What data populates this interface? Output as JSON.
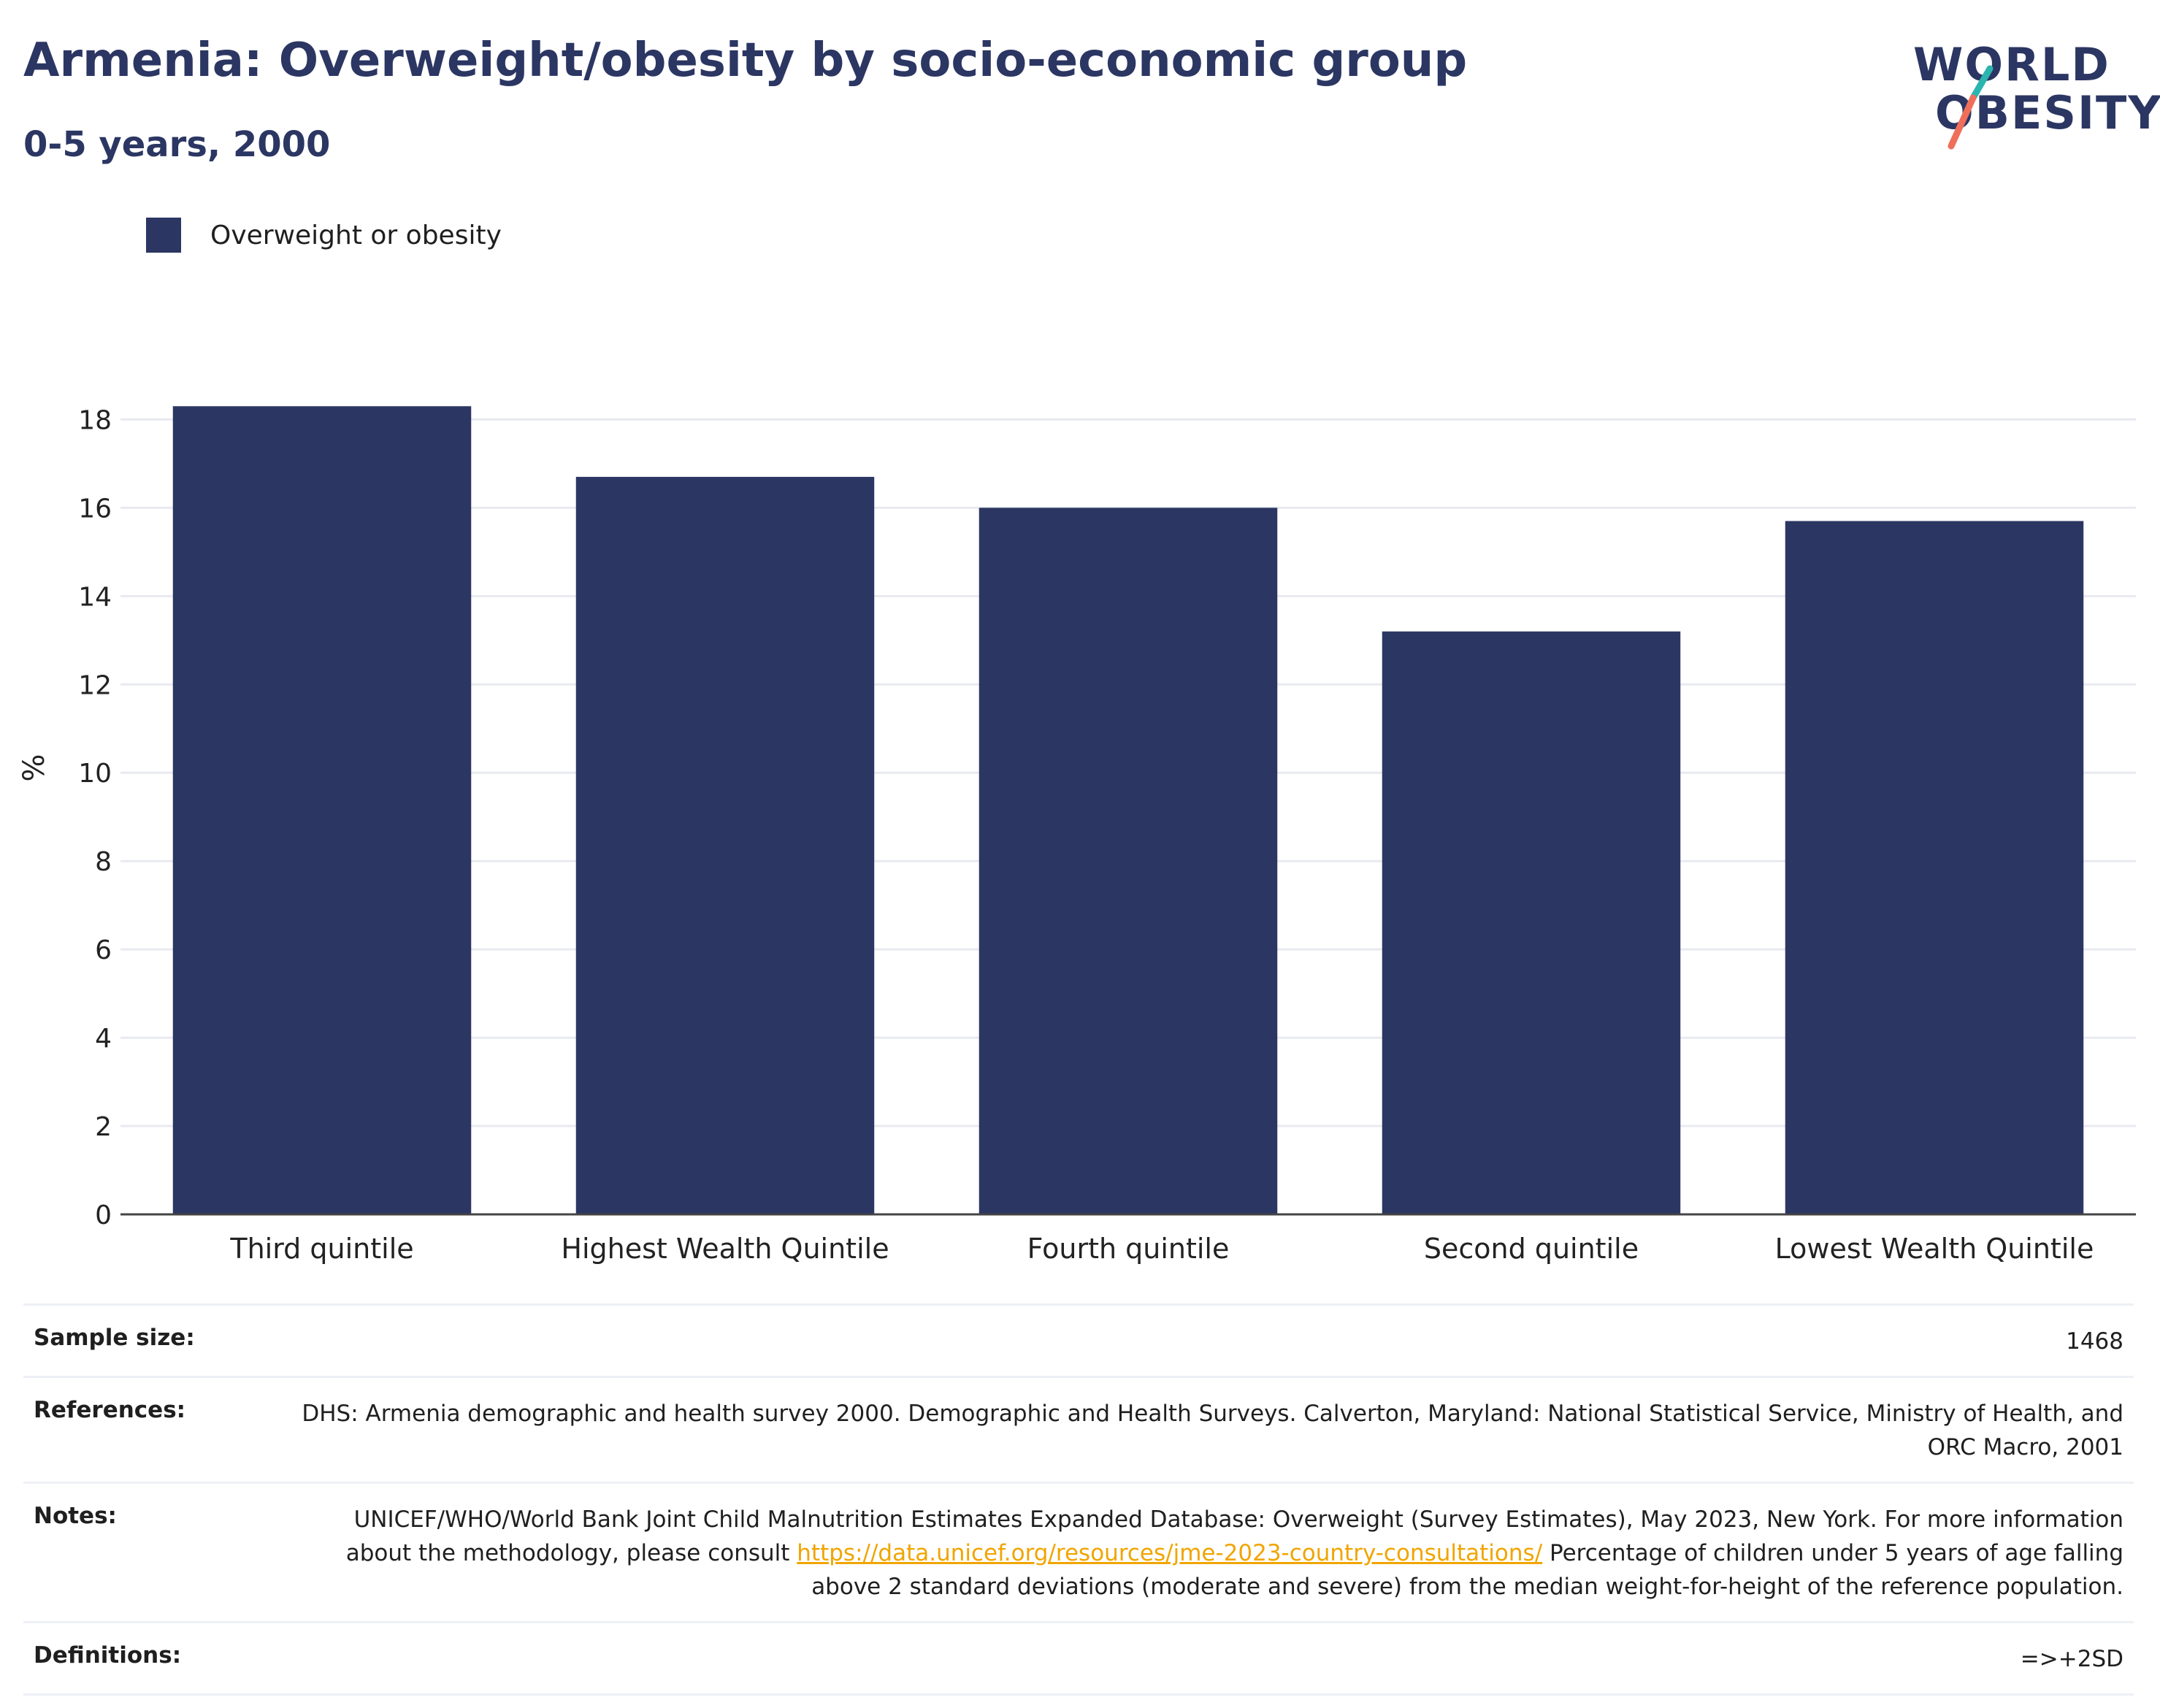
{
  "header": {
    "title": "Armenia: Overweight/obesity by socio-economic group",
    "subtitle": "0-5 years, 2000"
  },
  "logo": {
    "line1": "WORLD",
    "line2": "OBESITY",
    "teal": "#2bb5b0",
    "coral": "#ef6f5a"
  },
  "legend": {
    "label": "Overweight or obesity",
    "color": "#2b3663"
  },
  "chart_data": {
    "type": "bar",
    "categories": [
      "Third quintile",
      "Highest Wealth Quintile",
      "Fourth quintile",
      "Second quintile",
      "Lowest Wealth Quintile"
    ],
    "series": [
      {
        "name": "Overweight or obesity",
        "values": [
          18.3,
          16.7,
          16.0,
          13.2,
          15.7
        ],
        "color": "#2b3663"
      }
    ],
    "ylabel": "%",
    "ylim": [
      0,
      18.9
    ],
    "yticks": [
      0,
      2,
      4,
      6,
      8,
      10,
      12,
      14,
      16,
      18
    ],
    "grid": true,
    "legend_position": "top-left"
  },
  "info": {
    "sample_size_label": "Sample size:",
    "sample_size_value": "1468",
    "references_label": "References:",
    "references_value": "DHS: Armenia demographic and health survey 2000. Demographic and Health Surveys. Calverton, Maryland: National Statistical Service, Ministry of Health, and ORC Macro, 2001",
    "notes_label": "Notes:",
    "notes_text_before": "UNICEF/WHO/World Bank Joint Child Malnutrition Estimates Expanded Database: Overweight (Survey Estimates), May 2023, New York. For more information about the methodology, please consult ",
    "notes_link": "https://data.unicef.org/resources/jme-2023-country-consultations/",
    "notes_text_after": " Percentage of children under 5 years of age falling above 2 standard deviations (moderate and severe) from the median weight-for-height of the reference population.",
    "definitions_label": "Definitions:",
    "definitions_value": "=>+2SD"
  }
}
